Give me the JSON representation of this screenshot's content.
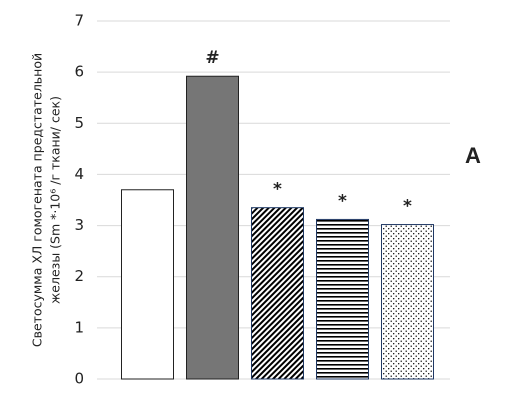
{
  "chart_data": {
    "type": "bar",
    "ylabel": [
      "Светосумма ХЛ гомогената предстательной",
      "железы (Sm *·10⁶ /г ткани/ сек)"
    ],
    "panel_label": "A",
    "categories": [
      null,
      null,
      null,
      null,
      null
    ],
    "values": [
      3.7,
      5.92,
      3.35,
      3.12,
      3.02
    ],
    "annotations": [
      null,
      "#",
      "*",
      "*",
      "*"
    ],
    "colors": [
      "#ffffff",
      "#767676",
      "#1f3864",
      "#1f3864",
      "#1f3864"
    ],
    "patterns": [
      "solid",
      "solid",
      "diagonal",
      "horizontal",
      "dots"
    ],
    "ylim": [
      0,
      7
    ],
    "yticks": [
      0,
      1,
      2,
      3,
      4,
      5,
      6,
      7
    ],
    "grid": true
  }
}
